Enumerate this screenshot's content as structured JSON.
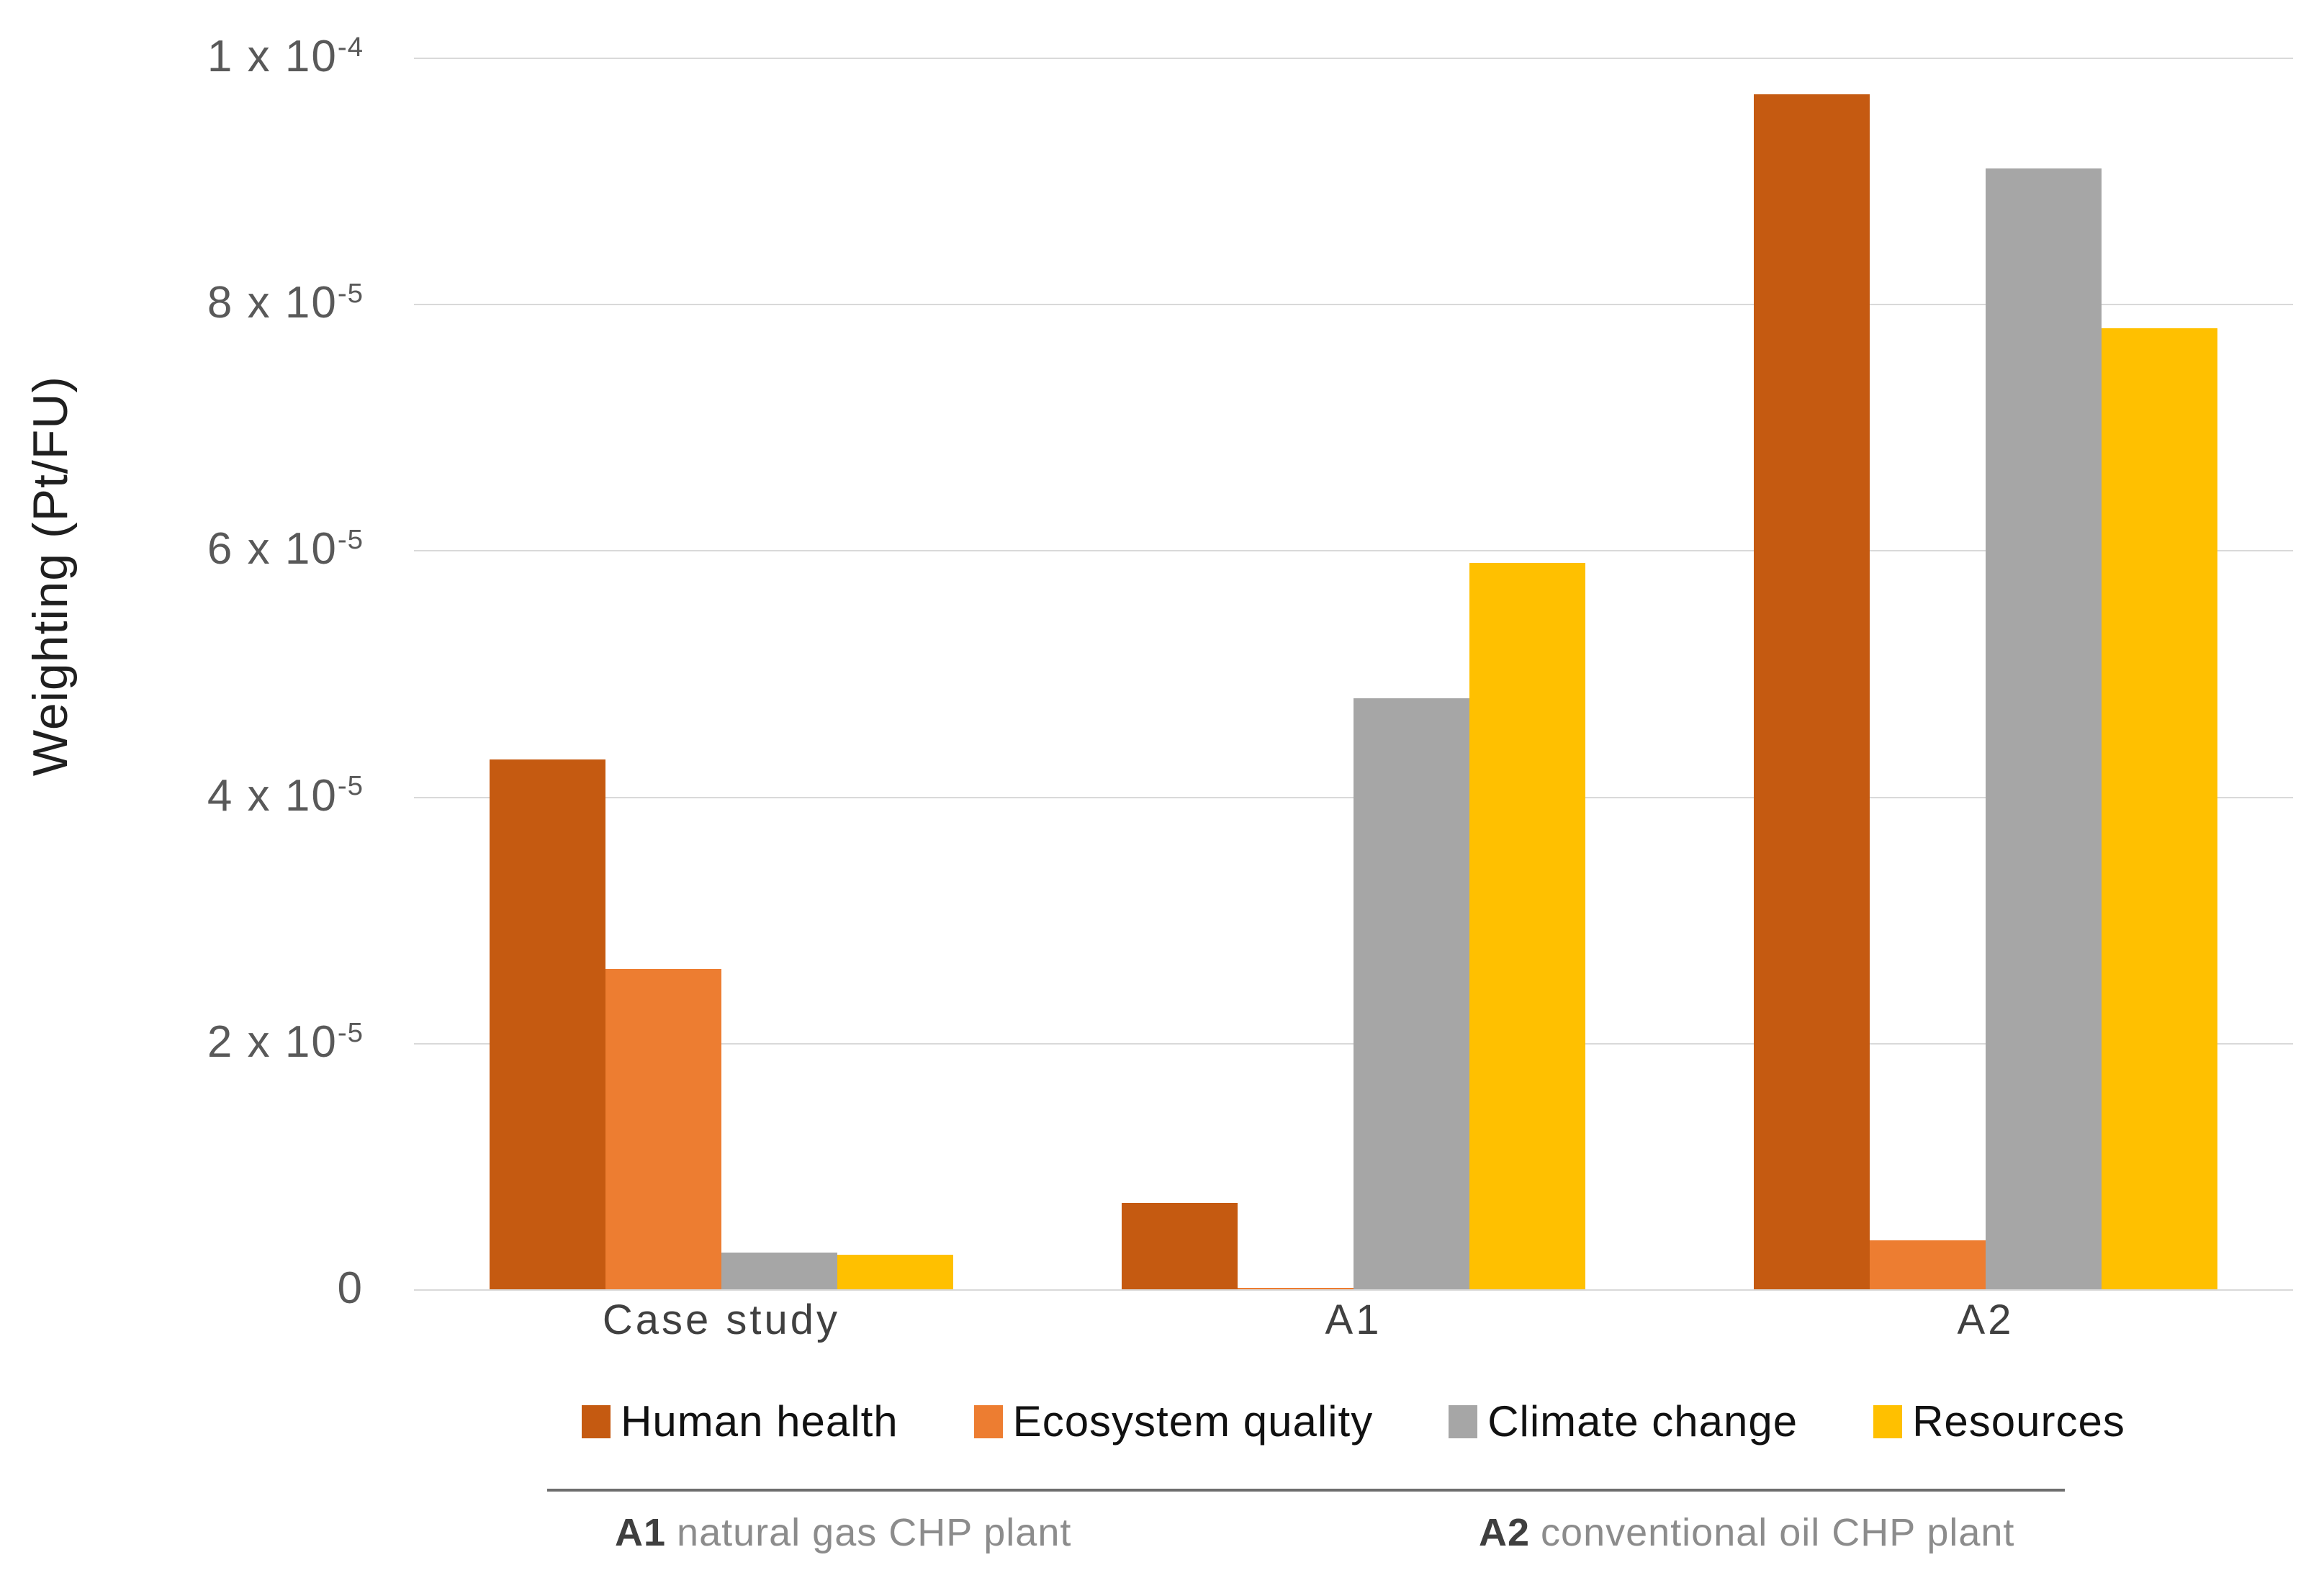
{
  "chart_data": {
    "type": "bar",
    "title": "",
    "xlabel": "",
    "ylabel": "Weighting (Pt/FU)",
    "ylim": [
      0,
      0.0001
    ],
    "grid": true,
    "legend_position": "bottom",
    "categories": [
      "Case study",
      "A1",
      "A2"
    ],
    "series": [
      {
        "name": "Human health",
        "color": "#C55A11",
        "values": [
          4.3e-05,
          7e-06,
          9.7e-05
        ]
      },
      {
        "name": "Ecosystem quality",
        "color": "#ED7D31",
        "values": [
          2.6e-05,
          1e-07,
          4e-06
        ]
      },
      {
        "name": "Climate change",
        "color": "#A6A6A6",
        "values": [
          3e-06,
          4.8e-05,
          9.1e-05
        ]
      },
      {
        "name": "Resources",
        "color": "#FFC000",
        "values": [
          2.8e-06,
          5.9e-05,
          7.8e-05
        ]
      }
    ],
    "yticks": [
      {
        "base": "1 x 10",
        "exp": "-4"
      },
      {
        "base": "8 x 10",
        "exp": "-5"
      },
      {
        "base": "6 x 10",
        "exp": "-5"
      },
      {
        "base": "4 x 10",
        "exp": "-5"
      },
      {
        "base": "2 x 10",
        "exp": "-5"
      },
      {
        "base": "0",
        "exp": ""
      }
    ]
  },
  "footnotes": [
    {
      "prefix": "A1",
      "text": "natural gas CHP plant"
    },
    {
      "prefix": "A2",
      "text": "conventional oil CHP plant"
    }
  ]
}
